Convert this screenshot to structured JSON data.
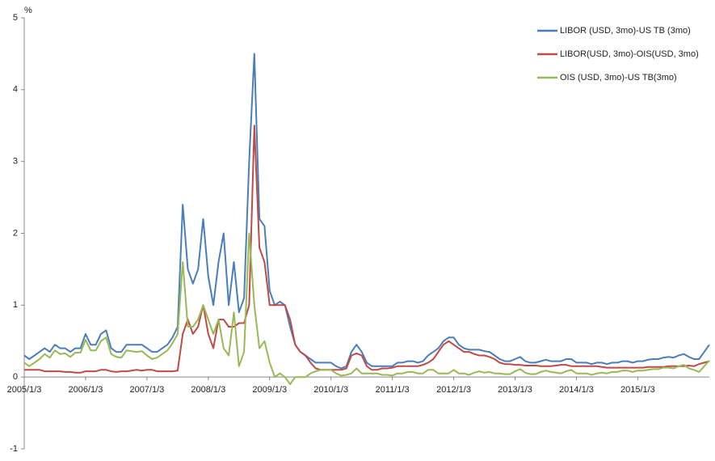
{
  "chart_data": {
    "type": "line",
    "y_label": "%",
    "categories": [
      "2005/1/3",
      null,
      null,
      null,
      null,
      null,
      null,
      null,
      null,
      null,
      null,
      null,
      "2006/1/3",
      null,
      null,
      null,
      null,
      null,
      null,
      null,
      null,
      null,
      null,
      null,
      "2007/1/3",
      null,
      null,
      null,
      null,
      null,
      null,
      null,
      null,
      null,
      null,
      null,
      "2008/1/3",
      null,
      null,
      null,
      null,
      null,
      null,
      null,
      null,
      null,
      null,
      null,
      "2009/1/3",
      null,
      null,
      null,
      null,
      null,
      null,
      null,
      null,
      null,
      null,
      null,
      "2010/1/3",
      null,
      null,
      null,
      null,
      null,
      null,
      null,
      null,
      null,
      null,
      null,
      "2011/1/3",
      null,
      null,
      null,
      null,
      null,
      null,
      null,
      null,
      null,
      null,
      null,
      "2012/1/3",
      null,
      null,
      null,
      null,
      null,
      null,
      null,
      null,
      null,
      null,
      null,
      "2013/1/3",
      null,
      null,
      null,
      null,
      null,
      null,
      null,
      null,
      null,
      null,
      null,
      "2014/1/3",
      null,
      null,
      null,
      null,
      null,
      null,
      null,
      null,
      null,
      null,
      null,
      "2015/1/3",
      null,
      null,
      null,
      null,
      null,
      null,
      null,
      null,
      null,
      null,
      null,
      null,
      null,
      null
    ],
    "series": [
      {
        "name": "LIBOR (USD, 3mo)-US TB (3mo)",
        "color": "#4a7ebb",
        "values": [
          0.3,
          0.25,
          0.3,
          0.35,
          0.4,
          0.35,
          0.45,
          0.4,
          0.4,
          0.35,
          0.4,
          0.4,
          0.6,
          0.45,
          0.45,
          0.6,
          0.65,
          0.4,
          0.35,
          0.35,
          0.45,
          0.45,
          0.45,
          0.45,
          0.4,
          0.35,
          0.35,
          0.4,
          0.45,
          0.55,
          0.7,
          2.4,
          1.5,
          1.3,
          1.5,
          2.2,
          1.4,
          1.0,
          1.6,
          2.0,
          1.0,
          1.6,
          0.9,
          1.1,
          3.0,
          4.5,
          2.2,
          2.1,
          1.2,
          1.0,
          1.05,
          1.0,
          0.7,
          0.45,
          0.35,
          0.3,
          0.25,
          0.2,
          0.2,
          0.2,
          0.2,
          0.15,
          0.12,
          0.15,
          0.35,
          0.45,
          0.35,
          0.2,
          0.15,
          0.15,
          0.15,
          0.15,
          0.15,
          0.2,
          0.2,
          0.22,
          0.22,
          0.2,
          0.22,
          0.3,
          0.35,
          0.4,
          0.5,
          0.55,
          0.55,
          0.45,
          0.4,
          0.38,
          0.38,
          0.38,
          0.36,
          0.35,
          0.3,
          0.25,
          0.22,
          0.22,
          0.25,
          0.28,
          0.22,
          0.2,
          0.2,
          0.22,
          0.24,
          0.22,
          0.22,
          0.22,
          0.25,
          0.25,
          0.2,
          0.2,
          0.2,
          0.18,
          0.2,
          0.2,
          0.18,
          0.2,
          0.2,
          0.22,
          0.22,
          0.2,
          0.22,
          0.22,
          0.24,
          0.25,
          0.25,
          0.27,
          0.28,
          0.27,
          0.3,
          0.32,
          0.28,
          0.25,
          0.25,
          0.35,
          0.45
        ]
      },
      {
        "name": "LIBOR(USD, 3mo)-OIS(USD, 3mo)",
        "color": "#be4b48",
        "values": [
          0.1,
          0.1,
          0.1,
          0.1,
          0.08,
          0.08,
          0.08,
          0.08,
          0.07,
          0.07,
          0.06,
          0.06,
          0.08,
          0.08,
          0.08,
          0.1,
          0.1,
          0.08,
          0.07,
          0.08,
          0.08,
          0.09,
          0.1,
          0.09,
          0.1,
          0.1,
          0.08,
          0.08,
          0.08,
          0.08,
          0.09,
          0.6,
          0.8,
          0.6,
          0.7,
          1.0,
          0.6,
          0.4,
          0.8,
          0.8,
          0.7,
          0.7,
          0.75,
          0.75,
          1.0,
          3.5,
          1.8,
          1.6,
          1.0,
          1.0,
          1.0,
          1.0,
          0.8,
          0.45,
          0.35,
          0.3,
          0.2,
          0.12,
          0.1,
          0.1,
          0.1,
          0.1,
          0.1,
          0.12,
          0.3,
          0.33,
          0.3,
          0.15,
          0.1,
          0.1,
          0.12,
          0.12,
          0.13,
          0.15,
          0.15,
          0.15,
          0.15,
          0.15,
          0.17,
          0.2,
          0.25,
          0.35,
          0.45,
          0.5,
          0.45,
          0.4,
          0.35,
          0.35,
          0.32,
          0.3,
          0.3,
          0.28,
          0.25,
          0.2,
          0.18,
          0.18,
          0.17,
          0.17,
          0.16,
          0.16,
          0.16,
          0.15,
          0.15,
          0.15,
          0.16,
          0.17,
          0.17,
          0.15,
          0.15,
          0.15,
          0.15,
          0.15,
          0.15,
          0.14,
          0.13,
          0.13,
          0.13,
          0.13,
          0.13,
          0.13,
          0.13,
          0.13,
          0.14,
          0.14,
          0.14,
          0.14,
          0.15,
          0.15,
          0.15,
          0.15,
          0.16,
          0.15,
          0.18,
          0.2,
          0.22
        ]
      },
      {
        "name": "OIS (USD, 3mo)-US TB(3mo)",
        "color": "#98b954",
        "values": [
          0.2,
          0.15,
          0.2,
          0.25,
          0.32,
          0.27,
          0.37,
          0.32,
          0.33,
          0.28,
          0.34,
          0.34,
          0.52,
          0.37,
          0.37,
          0.5,
          0.55,
          0.32,
          0.28,
          0.27,
          0.37,
          0.36,
          0.35,
          0.36,
          0.3,
          0.25,
          0.27,
          0.32,
          0.37,
          0.47,
          0.6,
          1.6,
          0.7,
          0.7,
          0.8,
          1.0,
          0.8,
          0.6,
          0.8,
          0.4,
          0.3,
          0.9,
          0.15,
          0.35,
          2.0,
          1.0,
          0.4,
          0.5,
          0.2,
          0.0,
          0.05,
          0.0,
          -0.1,
          0.0,
          0.0,
          0.0,
          0.05,
          0.08,
          0.1,
          0.1,
          0.1,
          0.05,
          0.02,
          0.03,
          0.05,
          0.12,
          0.05,
          0.05,
          0.05,
          0.05,
          0.03,
          0.03,
          0.02,
          0.05,
          0.05,
          0.07,
          0.07,
          0.05,
          0.05,
          0.1,
          0.1,
          0.05,
          0.05,
          0.05,
          0.1,
          0.05,
          0.05,
          0.03,
          0.06,
          0.08,
          0.06,
          0.07,
          0.05,
          0.05,
          0.04,
          0.04,
          0.08,
          0.11,
          0.06,
          0.04,
          0.04,
          0.07,
          0.09,
          0.07,
          0.06,
          0.05,
          0.08,
          0.1,
          0.05,
          0.05,
          0.05,
          0.03,
          0.05,
          0.06,
          0.05,
          0.07,
          0.07,
          0.09,
          0.09,
          0.07,
          0.09,
          0.09,
          0.1,
          0.11,
          0.11,
          0.13,
          0.13,
          0.12,
          0.15,
          0.17,
          0.12,
          0.1,
          0.07,
          0.15,
          0.23
        ]
      }
    ],
    "ylim": [
      -1,
      5
    ],
    "yticks": [
      -1,
      0,
      1,
      2,
      3,
      4,
      5
    ],
    "grid": false,
    "legend": "top-right"
  }
}
